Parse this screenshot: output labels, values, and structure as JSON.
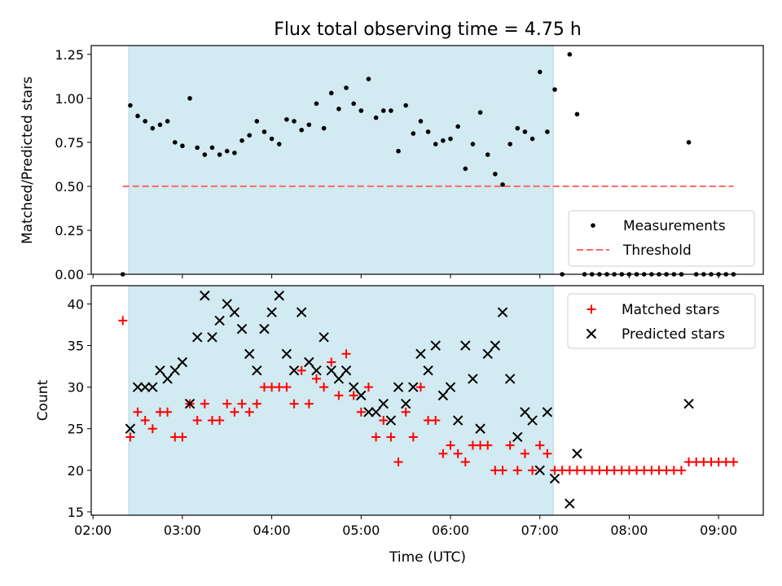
{
  "title": "Flux total observing time = 4.75 h",
  "colors": {
    "shade": "#add8e6",
    "threshold": "#ff6666",
    "measurements": "#000000",
    "matched": "#ff0000",
    "predicted": "#000000"
  },
  "chart_data": [
    {
      "type": "scatter",
      "ylabel": "Matched/Predicted stars",
      "ylim": [
        0.0,
        1.3
      ],
      "xlim_hours": [
        1.98,
        9.5
      ],
      "y_ticks": [
        "0.00",
        "0.25",
        "0.50",
        "0.75",
        "1.00",
        "1.25"
      ],
      "legend_position": "lower right",
      "observing_window": [
        "02:24",
        "07:09"
      ],
      "threshold": {
        "name": "Threshold",
        "value": 0.5,
        "x_range": [
          "02:20",
          "09:10"
        ]
      },
      "series": [
        {
          "name": "Measurements",
          "marker": "dot",
          "points": [
            [
              "02:20",
              0.0
            ],
            [
              "02:25",
              0.96
            ],
            [
              "02:30",
              0.9
            ],
            [
              "02:35",
              0.87
            ],
            [
              "02:40",
              0.83
            ],
            [
              "02:45",
              0.85
            ],
            [
              "02:50",
              0.87
            ],
            [
              "02:55",
              0.75
            ],
            [
              "03:00",
              0.73
            ],
            [
              "03:05",
              1.0
            ],
            [
              "03:10",
              0.72
            ],
            [
              "03:15",
              0.68
            ],
            [
              "03:20",
              0.72
            ],
            [
              "03:25",
              0.68
            ],
            [
              "03:30",
              0.7
            ],
            [
              "03:35",
              0.69
            ],
            [
              "03:40",
              0.76
            ],
            [
              "03:45",
              0.79
            ],
            [
              "03:50",
              0.87
            ],
            [
              "03:55",
              0.81
            ],
            [
              "04:00",
              0.77
            ],
            [
              "04:05",
              0.74
            ],
            [
              "04:10",
              0.88
            ],
            [
              "04:15",
              0.87
            ],
            [
              "04:20",
              0.82
            ],
            [
              "04:25",
              0.85
            ],
            [
              "04:30",
              0.97
            ],
            [
              "04:35",
              0.83
            ],
            [
              "04:40",
              1.03
            ],
            [
              "04:45",
              0.94
            ],
            [
              "04:50",
              1.06
            ],
            [
              "04:55",
              0.97
            ],
            [
              "05:00",
              0.93
            ],
            [
              "05:05",
              1.11
            ],
            [
              "05:10",
              0.89
            ],
            [
              "05:15",
              0.93
            ],
            [
              "05:20",
              0.93
            ],
            [
              "05:25",
              0.7
            ],
            [
              "05:30",
              0.96
            ],
            [
              "05:35",
              0.8
            ],
            [
              "05:40",
              0.87
            ],
            [
              "05:45",
              0.81
            ],
            [
              "05:50",
              0.74
            ],
            [
              "05:55",
              0.76
            ],
            [
              "06:00",
              0.77
            ],
            [
              "06:05",
              0.84
            ],
            [
              "06:10",
              0.6
            ],
            [
              "06:15",
              0.74
            ],
            [
              "06:20",
              0.92
            ],
            [
              "06:25",
              0.68
            ],
            [
              "06:30",
              0.57
            ],
            [
              "06:35",
              0.51
            ],
            [
              "06:40",
              0.74
            ],
            [
              "06:45",
              0.83
            ],
            [
              "06:50",
              0.81
            ],
            [
              "06:55",
              0.77
            ],
            [
              "07:00",
              1.15
            ],
            [
              "07:05",
              0.81
            ],
            [
              "07:10",
              1.05
            ],
            [
              "07:15",
              0.0
            ],
            [
              "07:20",
              1.25
            ],
            [
              "07:25",
              0.91
            ],
            [
              "07:30",
              0.0
            ],
            [
              "07:35",
              0.0
            ],
            [
              "07:40",
              0.0
            ],
            [
              "07:45",
              0.0
            ],
            [
              "07:50",
              0.0
            ],
            [
              "07:55",
              0.0
            ],
            [
              "08:00",
              0.0
            ],
            [
              "08:05",
              0.0
            ],
            [
              "08:10",
              0.0
            ],
            [
              "08:15",
              0.0
            ],
            [
              "08:20",
              0.0
            ],
            [
              "08:25",
              0.0
            ],
            [
              "08:30",
              0.0
            ],
            [
              "08:35",
              0.0
            ],
            [
              "08:40",
              0.75
            ],
            [
              "08:45",
              0.0
            ],
            [
              "08:50",
              0.0
            ],
            [
              "08:55",
              0.0
            ],
            [
              "09:00",
              0.0
            ],
            [
              "09:05",
              0.0
            ],
            [
              "09:10",
              0.0
            ]
          ]
        }
      ]
    },
    {
      "type": "scatter",
      "xlabel": "Time (UTC)",
      "ylabel": "Count",
      "ylim": [
        14.6,
        42.2
      ],
      "xlim_hours": [
        1.98,
        9.5
      ],
      "x_ticks": [
        "02:00",
        "03:00",
        "04:00",
        "05:00",
        "06:00",
        "07:00",
        "08:00",
        "09:00"
      ],
      "y_ticks": [
        "15",
        "20",
        "25",
        "30",
        "35",
        "40"
      ],
      "legend_position": "upper right",
      "observing_window": [
        "02:24",
        "07:09"
      ],
      "series": [
        {
          "name": "Matched stars",
          "marker": "plus",
          "points": [
            [
              "02:20",
              38
            ],
            [
              "02:25",
              24
            ],
            [
              "02:30",
              27
            ],
            [
              "02:35",
              26
            ],
            [
              "02:40",
              25
            ],
            [
              "02:45",
              27
            ],
            [
              "02:50",
              27
            ],
            [
              "02:55",
              24
            ],
            [
              "03:00",
              24
            ],
            [
              "03:05",
              28
            ],
            [
              "03:10",
              26
            ],
            [
              "03:15",
              28
            ],
            [
              "03:20",
              26
            ],
            [
              "03:25",
              26
            ],
            [
              "03:30",
              28
            ],
            [
              "03:35",
              27
            ],
            [
              "03:40",
              28
            ],
            [
              "03:45",
              27
            ],
            [
              "03:50",
              28
            ],
            [
              "03:55",
              30
            ],
            [
              "04:00",
              30
            ],
            [
              "04:05",
              30
            ],
            [
              "04:10",
              30
            ],
            [
              "04:15",
              28
            ],
            [
              "04:20",
              32
            ],
            [
              "04:25",
              28
            ],
            [
              "04:30",
              31
            ],
            [
              "04:35",
              30
            ],
            [
              "04:40",
              33
            ],
            [
              "04:45",
              29
            ],
            [
              "04:50",
              34
            ],
            [
              "04:55",
              29
            ],
            [
              "05:00",
              27
            ],
            [
              "05:05",
              30
            ],
            [
              "05:10",
              24
            ],
            [
              "05:15",
              26
            ],
            [
              "05:20",
              24
            ],
            [
              "05:25",
              21
            ],
            [
              "05:30",
              27
            ],
            [
              "05:35",
              24
            ],
            [
              "05:40",
              30
            ],
            [
              "05:45",
              26
            ],
            [
              "05:50",
              26
            ],
            [
              "05:55",
              22
            ],
            [
              "06:00",
              23
            ],
            [
              "06:05",
              22
            ],
            [
              "06:10",
              21
            ],
            [
              "06:15",
              23
            ],
            [
              "06:20",
              23
            ],
            [
              "06:25",
              23
            ],
            [
              "06:30",
              20
            ],
            [
              "06:35",
              20
            ],
            [
              "06:40",
              23
            ],
            [
              "06:45",
              20
            ],
            [
              "06:50",
              22
            ],
            [
              "06:55",
              20
            ],
            [
              "07:00",
              23
            ],
            [
              "07:05",
              22
            ],
            [
              "07:10",
              20
            ],
            [
              "07:15",
              20
            ],
            [
              "07:20",
              20
            ],
            [
              "07:25",
              20
            ],
            [
              "07:30",
              20
            ],
            [
              "07:35",
              20
            ],
            [
              "07:40",
              20
            ],
            [
              "07:45",
              20
            ],
            [
              "07:50",
              20
            ],
            [
              "07:55",
              20
            ],
            [
              "08:00",
              20
            ],
            [
              "08:05",
              20
            ],
            [
              "08:10",
              20
            ],
            [
              "08:15",
              20
            ],
            [
              "08:20",
              20
            ],
            [
              "08:25",
              20
            ],
            [
              "08:30",
              20
            ],
            [
              "08:35",
              20
            ],
            [
              "08:40",
              21
            ],
            [
              "08:45",
              21
            ],
            [
              "08:50",
              21
            ],
            [
              "08:55",
              21
            ],
            [
              "09:00",
              21
            ],
            [
              "09:05",
              21
            ],
            [
              "09:10",
              21
            ]
          ]
        },
        {
          "name": "Predicted stars",
          "marker": "x",
          "points": [
            [
              "02:25",
              25
            ],
            [
              "02:30",
              30
            ],
            [
              "02:35",
              30
            ],
            [
              "02:40",
              30
            ],
            [
              "02:45",
              32
            ],
            [
              "02:50",
              31
            ],
            [
              "02:55",
              32
            ],
            [
              "03:00",
              33
            ],
            [
              "03:05",
              28
            ],
            [
              "03:10",
              36
            ],
            [
              "03:15",
              41
            ],
            [
              "03:20",
              36
            ],
            [
              "03:25",
              38
            ],
            [
              "03:30",
              40
            ],
            [
              "03:35",
              39
            ],
            [
              "03:40",
              37
            ],
            [
              "03:45",
              34
            ],
            [
              "03:50",
              32
            ],
            [
              "03:55",
              37
            ],
            [
              "04:00",
              39
            ],
            [
              "04:05",
              41
            ],
            [
              "04:10",
              34
            ],
            [
              "04:15",
              32
            ],
            [
              "04:20",
              39
            ],
            [
              "04:25",
              33
            ],
            [
              "04:30",
              32
            ],
            [
              "04:35",
              36
            ],
            [
              "04:40",
              32
            ],
            [
              "04:45",
              31
            ],
            [
              "04:50",
              32
            ],
            [
              "04:55",
              30
            ],
            [
              "05:00",
              29
            ],
            [
              "05:05",
              27
            ],
            [
              "05:10",
              27
            ],
            [
              "05:15",
              28
            ],
            [
              "05:20",
              26
            ],
            [
              "05:25",
              30
            ],
            [
              "05:30",
              28
            ],
            [
              "05:35",
              30
            ],
            [
              "05:40",
              34
            ],
            [
              "05:45",
              32
            ],
            [
              "05:50",
              35
            ],
            [
              "05:55",
              29
            ],
            [
              "06:00",
              30
            ],
            [
              "06:05",
              26
            ],
            [
              "06:10",
              35
            ],
            [
              "06:15",
              31
            ],
            [
              "06:20",
              25
            ],
            [
              "06:25",
              34
            ],
            [
              "06:30",
              35
            ],
            [
              "06:35",
              39
            ],
            [
              "06:40",
              31
            ],
            [
              "06:45",
              24
            ],
            [
              "06:50",
              27
            ],
            [
              "06:55",
              26
            ],
            [
              "07:00",
              20
            ],
            [
              "07:05",
              27
            ],
            [
              "07:10",
              19
            ],
            [
              "07:20",
              16
            ],
            [
              "07:25",
              22
            ],
            [
              "08:40",
              28
            ]
          ]
        }
      ]
    }
  ]
}
